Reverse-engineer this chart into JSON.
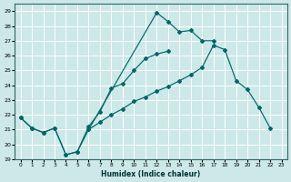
{
  "xlabel": "Humidex (Indice chaleur)",
  "bg_color": "#cce8e8",
  "grid_color": "#ffffff",
  "line_color": "#006666",
  "xlim": [
    -0.5,
    23.5
  ],
  "ylim": [
    19,
    29.5
  ],
  "yticks": [
    19,
    20,
    21,
    22,
    23,
    24,
    25,
    26,
    27,
    28,
    29
  ],
  "xticks": [
    0,
    1,
    2,
    3,
    4,
    5,
    6,
    7,
    8,
    9,
    10,
    11,
    12,
    13,
    14,
    15,
    16,
    17,
    18,
    19,
    20,
    21,
    22,
    23
  ],
  "line1_x": [
    0,
    1,
    2,
    3,
    4,
    5,
    6,
    7,
    8,
    9,
    10,
    11,
    12,
    13
  ],
  "line1_y": [
    21.8,
    21.1,
    20.8,
    21.1,
    19.3,
    19.5,
    21.2,
    22.2,
    23.8,
    24.1,
    25.0,
    25.8,
    26.1,
    26.3
  ],
  "line2_x": [
    0,
    1,
    2,
    3,
    4,
    5,
    6,
    12,
    13,
    14,
    15,
    16,
    17
  ],
  "line2_y": [
    21.8,
    21.1,
    20.8,
    21.1,
    19.3,
    19.5,
    21.0,
    28.9,
    28.3,
    27.6,
    27.7,
    27.0,
    27.0
  ],
  "line3_x": [
    6,
    7,
    8,
    9,
    10,
    11,
    12,
    13,
    14,
    15,
    16,
    17,
    18,
    19,
    20,
    21,
    22
  ],
  "line3_y": [
    21.0,
    21.5,
    22.0,
    22.4,
    22.9,
    23.2,
    23.6,
    23.9,
    24.3,
    24.7,
    25.2,
    26.7,
    26.4,
    24.3,
    23.7,
    22.5,
    21.1
  ]
}
